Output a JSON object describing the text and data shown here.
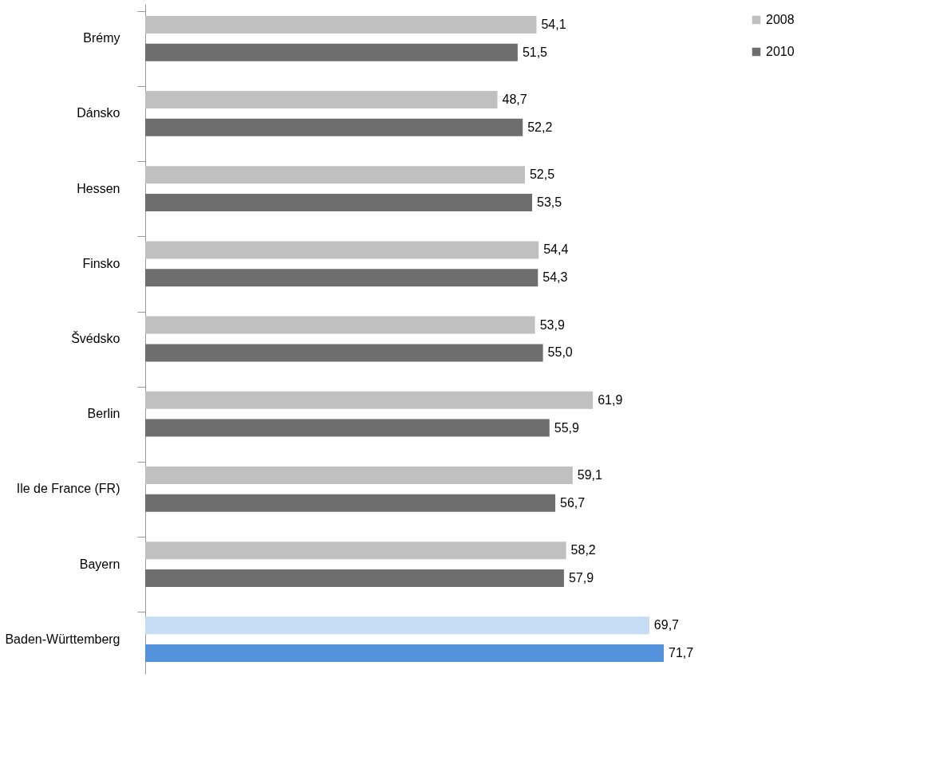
{
  "chart_data": {
    "type": "bar",
    "orientation": "horizontal",
    "legend": "right",
    "grid": false,
    "categories": [
      "Brémy",
      "Dánsko",
      "Hessen",
      "Finsko",
      "Švédsko",
      "Berlin",
      "Ile de France (FR)",
      "Bayern",
      "Baden-Württemberg"
    ],
    "series": [
      {
        "name": "2008",
        "color": "#c0c0c0",
        "colors": [
          "#c0c0c0",
          "#c0c0c0",
          "#c0c0c0",
          "#c0c0c0",
          "#c0c0c0",
          "#c0c0c0",
          "#c0c0c0",
          "#c0c0c0",
          "#c6dcf4"
        ],
        "values": [
          54.1,
          48.7,
          52.5,
          54.4,
          53.9,
          61.9,
          59.1,
          58.2,
          69.7
        ],
        "value_labels": [
          "54,1",
          "48,7",
          "52,5",
          "54,4",
          "53,9",
          "61,9",
          "59,1",
          "58,2",
          "69,7"
        ]
      },
      {
        "name": "2010",
        "color": "#6e6e6e",
        "colors": [
          "#6e6e6e",
          "#6e6e6e",
          "#6e6e6e",
          "#6e6e6e",
          "#6e6e6e",
          "#6e6e6e",
          "#6e6e6e",
          "#6e6e6e",
          "#5592dc"
        ],
        "values": [
          51.5,
          52.2,
          53.5,
          54.3,
          55.0,
          55.9,
          56.7,
          57.9,
          71.7
        ],
        "value_labels": [
          "51,5",
          "52,2",
          "53,5",
          "54,3",
          "55,0",
          "55,9",
          "56,7",
          "57,9",
          "71,7"
        ]
      }
    ]
  }
}
